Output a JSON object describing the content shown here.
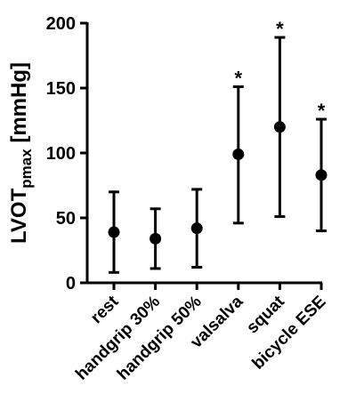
{
  "chart_data": {
    "type": "scatter",
    "title": "",
    "xlabel": "",
    "ylabel": {
      "main": "LVOT",
      "subscript": "pmax",
      "unit": " [mmHg]"
    },
    "ylim": [
      0,
      200
    ],
    "yticks": [
      "0",
      "50",
      "100",
      "150",
      "200"
    ],
    "grid": false,
    "categories": [
      "rest",
      "handgrip 30%",
      "handgrip 50%",
      "valsalva",
      "squat",
      "bicycle ESE"
    ],
    "series": [
      {
        "values": [
          39,
          34,
          42,
          99,
          120,
          83
        ],
        "error_upper": [
          70,
          57,
          72,
          151,
          189,
          126
        ],
        "error_lower": [
          8,
          11,
          12,
          46,
          51,
          40
        ],
        "annotations": [
          "",
          "",
          "",
          "*",
          "*",
          "*"
        ]
      }
    ]
  }
}
